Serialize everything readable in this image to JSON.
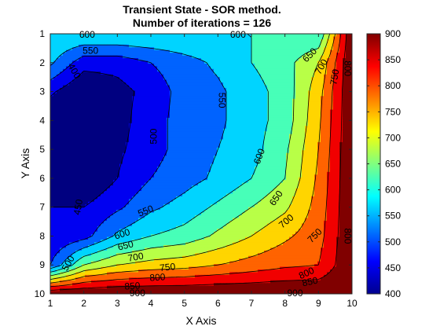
{
  "chart_data": {
    "type": "contour",
    "title": "Transient State - SOR method.",
    "subtitle": "Number of iterations = 126",
    "xlabel": "X Axis",
    "ylabel": "Y Axis",
    "xlim": [
      1,
      10
    ],
    "ylim": [
      1,
      10
    ],
    "y_reversed": true,
    "xticks": [
      "1",
      "2",
      "3",
      "4",
      "5",
      "6",
      "7",
      "8",
      "9",
      "10"
    ],
    "yticks": [
      "1",
      "2",
      "3",
      "4",
      "5",
      "6",
      "7",
      "8",
      "9",
      "10"
    ],
    "colormap": "jet",
    "clim": [
      400,
      900
    ],
    "colorbar_ticks": [
      "400",
      "450",
      "500",
      "550",
      "600",
      "650",
      "700",
      "750",
      "800",
      "850",
      "900"
    ],
    "levels": [
      400,
      450,
      500,
      550,
      600,
      650,
      700,
      750,
      800,
      850,
      900
    ],
    "grid_x": [
      1,
      2,
      3,
      4,
      5,
      6,
      7,
      8,
      9,
      10
    ],
    "grid_y": [
      1,
      2,
      3,
      4,
      5,
      6,
      7,
      8,
      9,
      10
    ],
    "z": [
      [
        600,
        600,
        600,
        600,
        600,
        600,
        600,
        600,
        600,
        900
      ],
      [
        560,
        470,
        470,
        500,
        530,
        560,
        600,
        630,
        700,
        900
      ],
      [
        460,
        400,
        430,
        470,
        520,
        540,
        580,
        620,
        730,
        900
      ],
      [
        400,
        400,
        430,
        480,
        520,
        540,
        580,
        620,
        740,
        900
      ],
      [
        400,
        400,
        440,
        480,
        520,
        550,
        580,
        640,
        750,
        900
      ],
      [
        400,
        400,
        450,
        500,
        530,
        560,
        600,
        650,
        760,
        900
      ],
      [
        450,
        450,
        490,
        540,
        570,
        610,
        650,
        690,
        770,
        900
      ],
      [
        450,
        480,
        560,
        600,
        620,
        660,
        700,
        740,
        780,
        900
      ],
      [
        500,
        650,
        700,
        720,
        730,
        750,
        770,
        790,
        800,
        900
      ],
      [
        900,
        900,
        900,
        900,
        900,
        900,
        900,
        900,
        900,
        900
      ]
    ],
    "contour_labels": [
      {
        "text": "600",
        "x": 2.1,
        "y": 1.05,
        "angle": 0
      },
      {
        "text": "600",
        "x": 6.6,
        "y": 1.05,
        "angle": 0
      },
      {
        "text": "550",
        "x": 2.2,
        "y": 1.6,
        "angle": 0
      },
      {
        "text": "650",
        "x": 8.75,
        "y": 1.75,
        "angle": -45
      },
      {
        "text": "700",
        "x": 9.1,
        "y": 2.15,
        "angle": -60
      },
      {
        "text": "750",
        "x": 9.5,
        "y": 2.5,
        "angle": -80
      },
      {
        "text": "800",
        "x": 9.85,
        "y": 2.2,
        "angle": 90
      },
      {
        "text": "400",
        "x": 1.7,
        "y": 2.3,
        "angle": 60
      },
      {
        "text": "550",
        "x": 6.1,
        "y": 3.3,
        "angle": 90
      },
      {
        "text": "500",
        "x": 4.1,
        "y": 4.55,
        "angle": -90
      },
      {
        "text": "600",
        "x": 7.25,
        "y": 5.25,
        "angle": -70
      },
      {
        "text": "650",
        "x": 7.75,
        "y": 6.7,
        "angle": -55
      },
      {
        "text": "450",
        "x": 1.85,
        "y": 7.0,
        "angle": -80
      },
      {
        "text": "550",
        "x": 3.85,
        "y": 7.15,
        "angle": -22
      },
      {
        "text": "700",
        "x": 8.05,
        "y": 7.5,
        "angle": -40
      },
      {
        "text": "750",
        "x": 8.9,
        "y": 8.0,
        "angle": -45
      },
      {
        "text": "600",
        "x": 3.15,
        "y": 7.95,
        "angle": -18
      },
      {
        "text": "800",
        "x": 9.85,
        "y": 8.0,
        "angle": 90
      },
      {
        "text": "650",
        "x": 3.25,
        "y": 8.35,
        "angle": -14
      },
      {
        "text": "500",
        "x": 1.55,
        "y": 8.95,
        "angle": -60
      },
      {
        "text": "700",
        "x": 3.55,
        "y": 8.75,
        "angle": -10
      },
      {
        "text": "750",
        "x": 4.5,
        "y": 9.1,
        "angle": -6
      },
      {
        "text": "800",
        "x": 8.65,
        "y": 9.3,
        "angle": -25
      },
      {
        "text": "800",
        "x": 4.2,
        "y": 9.45,
        "angle": -4
      },
      {
        "text": "850",
        "x": 8.75,
        "y": 9.6,
        "angle": -12
      },
      {
        "text": "850",
        "x": 3.45,
        "y": 9.75,
        "angle": -4
      },
      {
        "text": "900",
        "x": 3.6,
        "y": 10.0,
        "angle": 0
      },
      {
        "text": "900",
        "x": 8.3,
        "y": 10.0,
        "angle": 0
      }
    ]
  }
}
